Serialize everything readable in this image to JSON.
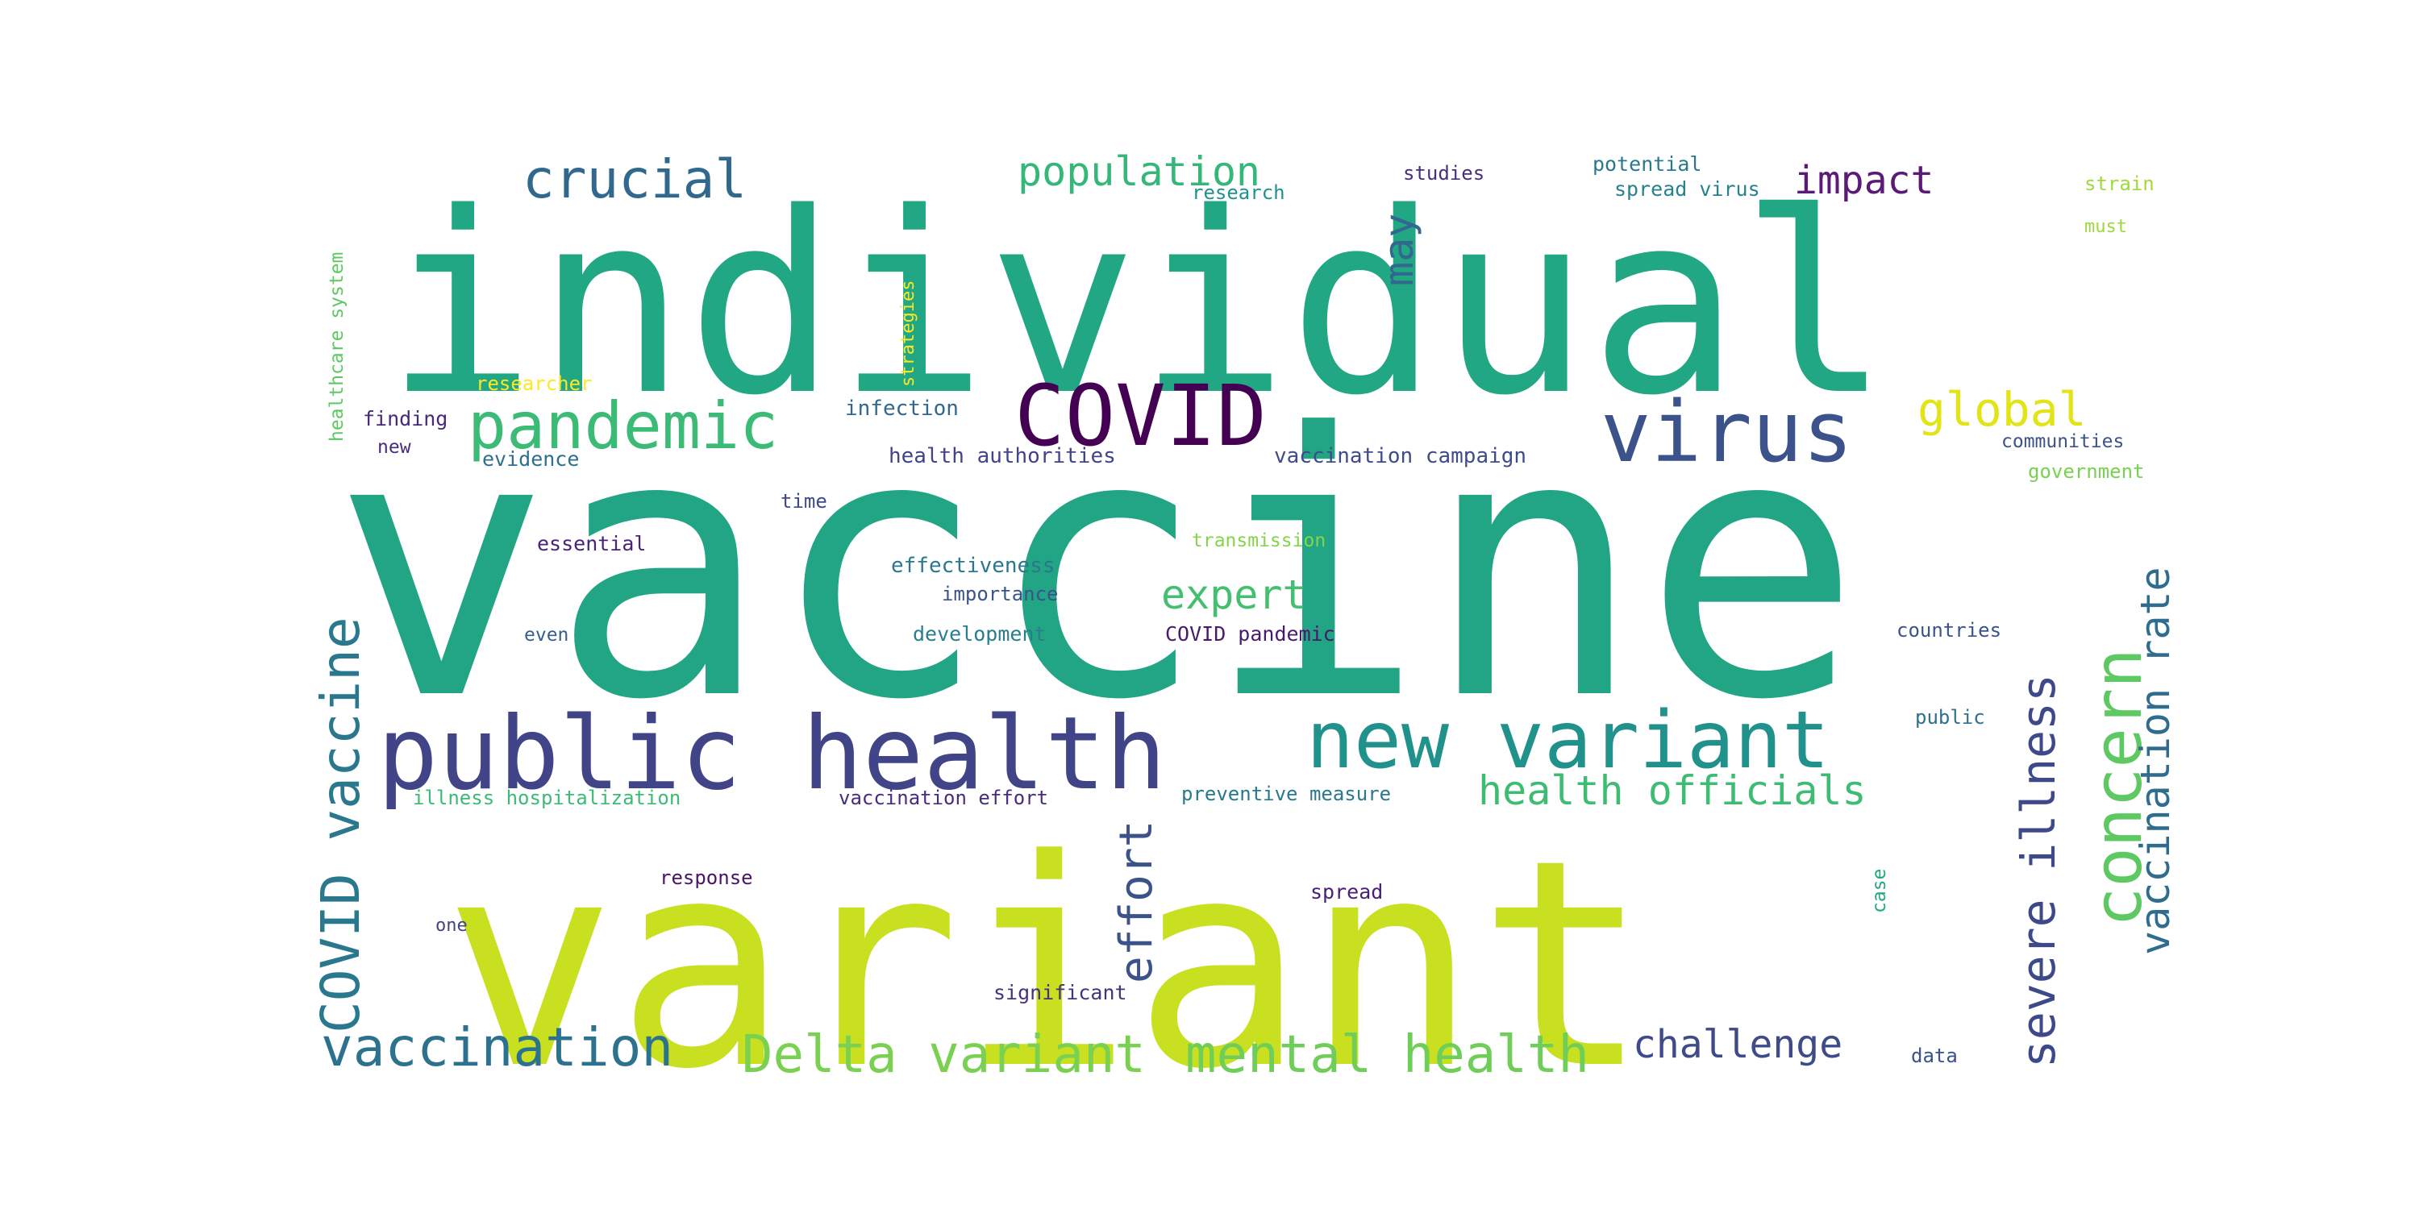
{
  "word_cloud": {
    "words": [
      {
        "text": "vaccine",
        "color": "#21a584"
      },
      {
        "text": "individual",
        "color": "#22a785"
      },
      {
        "text": "variant",
        "color": "#c8e020"
      },
      {
        "text": "public health",
        "color": "#414487"
      },
      {
        "text": "new variant",
        "color": "#21918c"
      },
      {
        "text": "COVID",
        "color": "#440154"
      },
      {
        "text": "virus",
        "color": "#3b528b"
      },
      {
        "text": "pandemic",
        "color": "#3bbb75"
      },
      {
        "text": "crucial",
        "color": "#31688e"
      },
      {
        "text": "population",
        "color": "#35b779"
      },
      {
        "text": "impact",
        "color": "#5b1a77"
      },
      {
        "text": "global",
        "color": "#e2e418"
      },
      {
        "text": "may",
        "color": "#31688e"
      },
      {
        "text": "COVID vaccine",
        "color": "#2a788e"
      },
      {
        "text": "vaccination",
        "color": "#2c728e"
      },
      {
        "text": "Delta variant",
        "color": "#7ad151"
      },
      {
        "text": "mental health",
        "color": "#6ece58"
      },
      {
        "text": "challenge",
        "color": "#3e4a89"
      },
      {
        "text": "concern",
        "color": "#5ec962"
      },
      {
        "text": "severe illness",
        "color": "#3e4989"
      },
      {
        "text": "vaccination rate",
        "color": "#2f6c8e"
      },
      {
        "text": "health officials",
        "color": "#3fbc73"
      },
      {
        "text": "effort",
        "color": "#3b528b"
      },
      {
        "text": "expert",
        "color": "#44bf70"
      },
      {
        "text": "healthcare system",
        "color": "#5ec962"
      },
      {
        "text": "strategies",
        "color": "#fde725"
      },
      {
        "text": "researcher",
        "color": "#fde725"
      },
      {
        "text": "finding",
        "color": "#482878"
      },
      {
        "text": "new",
        "color": "#472d7b"
      },
      {
        "text": "evidence",
        "color": "#2e6f8e"
      },
      {
        "text": "infection",
        "color": "#31688e"
      },
      {
        "text": "health authorities",
        "color": "#414487"
      },
      {
        "text": "vaccination campaign",
        "color": "#3e4c8a"
      },
      {
        "text": "research",
        "color": "#21918c"
      },
      {
        "text": "studies",
        "color": "#472f7d"
      },
      {
        "text": "potential",
        "color": "#2a788e"
      },
      {
        "text": "spread virus",
        "color": "#26828e"
      },
      {
        "text": "strain",
        "color": "#a0da39"
      },
      {
        "text": "must",
        "color": "#9bd93c"
      },
      {
        "text": "communities",
        "color": "#3b528b"
      },
      {
        "text": "government",
        "color": "#7ad151"
      },
      {
        "text": "time",
        "color": "#3e4a89"
      },
      {
        "text": "essential",
        "color": "#482475"
      },
      {
        "text": "transmission",
        "color": "#86d549"
      },
      {
        "text": "effectiveness",
        "color": "#2a788e"
      },
      {
        "text": "importance",
        "color": "#3b528b"
      },
      {
        "text": "even",
        "color": "#35608d"
      },
      {
        "text": "development",
        "color": "#277f8e"
      },
      {
        "text": "COVID pandemic",
        "color": "#481a6c"
      },
      {
        "text": "countries",
        "color": "#3b528b"
      },
      {
        "text": "public",
        "color": "#2c728e"
      },
      {
        "text": "illness hospitalization",
        "color": "#3bbb75"
      },
      {
        "text": "vaccination effort",
        "color": "#472d7b"
      },
      {
        "text": "preventive measure",
        "color": "#2a788e"
      },
      {
        "text": "response",
        "color": "#481467"
      },
      {
        "text": "spread",
        "color": "#482173"
      },
      {
        "text": "one",
        "color": "#414487"
      },
      {
        "text": "case",
        "color": "#22a884"
      },
      {
        "text": "significant",
        "color": "#46337f"
      },
      {
        "text": "data",
        "color": "#3b528b"
      }
    ]
  }
}
